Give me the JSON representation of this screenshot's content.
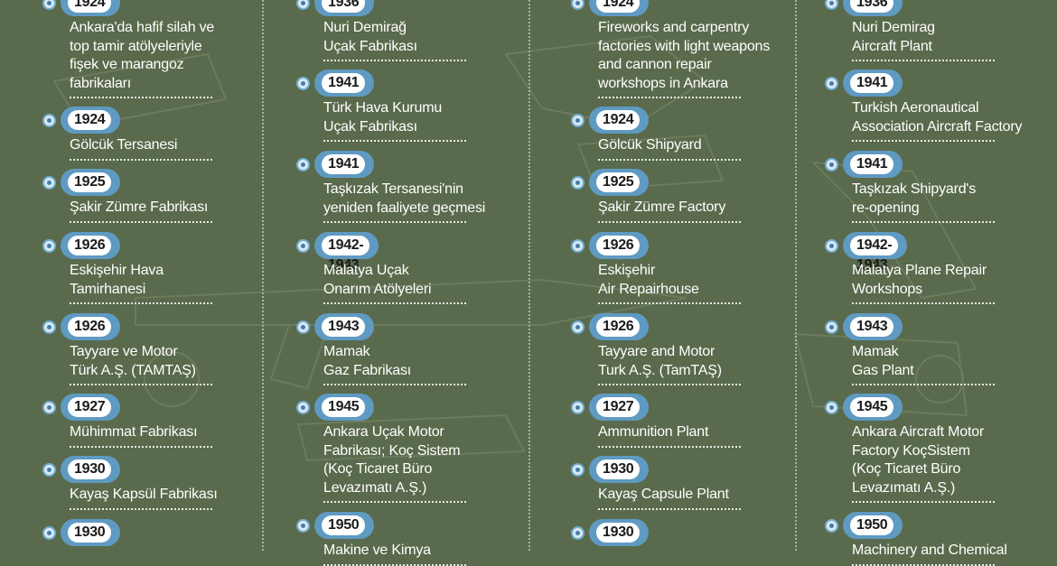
{
  "columns": [
    {
      "entries": [
        {
          "year": "1924",
          "lines": [
            "Ankara'da hafif silah ve",
            "top tamir atölyeleriyle",
            "fişek ve marangoz",
            "fabrikaları"
          ]
        },
        {
          "year": "1924",
          "lines": [
            "Gölcük Tersanesi"
          ]
        },
        {
          "year": "1925",
          "lines": [
            "Şakir Zümre Fabrikası"
          ]
        },
        {
          "year": "1926",
          "lines": [
            "Eskişehir Hava",
            "Tamirhanesi"
          ]
        },
        {
          "year": "1926",
          "lines": [
            "Tayyare ve Motor",
            "Türk A.Ş. (TAMTAŞ)"
          ]
        },
        {
          "year": "1927",
          "lines": [
            "Mühimmat Fabrikası"
          ]
        },
        {
          "year": "1930",
          "lines": [
            "Kayaş Kapsül Fabrikası"
          ]
        },
        {
          "year": "1930",
          "lines": []
        }
      ]
    },
    {
      "entries": [
        {
          "year": "1936",
          "lines": [
            "Nuri Demirağ",
            "Uçak Fabrikası"
          ]
        },
        {
          "year": "1941",
          "lines": [
            "Türk Hava Kurumu",
            "Uçak Fabrikası"
          ]
        },
        {
          "year": "1941",
          "lines": [
            "Taşkızak Tersanesi'nin",
            "yeniden faaliyete geçmesi"
          ]
        },
        {
          "year": "1942-1943",
          "lines": [
            "Malatya Uçak",
            "Onarım Atölyeleri"
          ]
        },
        {
          "year": "1943",
          "lines": [
            "Mamak",
            "Gaz Fabrikası"
          ]
        },
        {
          "year": "1945",
          "lines": [
            "Ankara Uçak Motor",
            "Fabrikası; Koç Sistem",
            "(Koç Ticaret Büro",
            "Levazımatı A.Ş.)"
          ]
        },
        {
          "year": "1950",
          "lines": [
            "Makine ve Kimya"
          ]
        }
      ]
    },
    {
      "entries": [
        {
          "year": "1924",
          "lines": [
            "Fireworks and carpentry",
            "factories with light weapons",
            "and cannon repair",
            "workshops in Ankara"
          ]
        },
        {
          "year": "1924",
          "lines": [
            "Gölcük Shipyard"
          ]
        },
        {
          "year": "1925",
          "lines": [
            "Şakir Zümre Factory"
          ]
        },
        {
          "year": "1926",
          "lines": [
            "Eskişehir",
            "Air Repairhouse"
          ]
        },
        {
          "year": "1926",
          "lines": [
            "Tayyare and Motor",
            "Turk A.Ş. (TamTAŞ)"
          ]
        },
        {
          "year": "1927",
          "lines": [
            "Ammunition Plant"
          ]
        },
        {
          "year": "1930",
          "lines": [
            "Kayaş Capsule Plant"
          ]
        },
        {
          "year": "1930",
          "lines": []
        }
      ]
    },
    {
      "entries": [
        {
          "year": "1936",
          "lines": [
            "Nuri Demirag",
            "Aircraft Plant"
          ]
        },
        {
          "year": "1941",
          "lines": [
            "Turkish Aeronautical",
            "Association Aircraft Factory"
          ]
        },
        {
          "year": "1941",
          "lines": [
            "Taşkızak Shipyard's",
            "re-opening"
          ]
        },
        {
          "year": "1942-1943",
          "lines": [
            "Malatya Plane Repair",
            "Workshops"
          ]
        },
        {
          "year": "1943",
          "lines": [
            "Mamak",
            "Gas Plant"
          ]
        },
        {
          "year": "1945",
          "lines": [
            "Ankara Aircraft Motor",
            "Factory KoçSistem",
            "(Koç Ticaret Büro",
            "Levazımatı A.Ş.)"
          ]
        },
        {
          "year": "1950",
          "lines": [
            "Machinery and Chemical"
          ]
        }
      ]
    }
  ]
}
